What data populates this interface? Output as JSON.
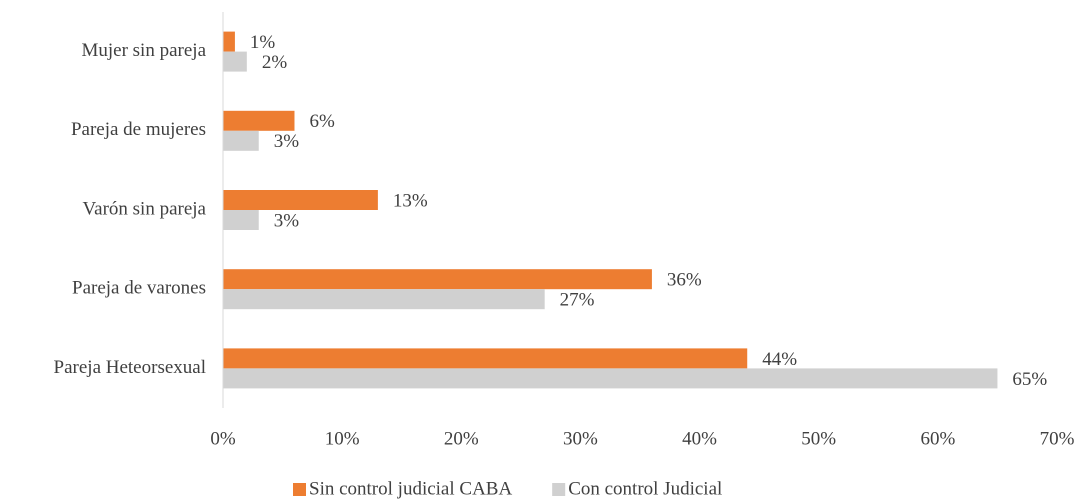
{
  "chart_data": {
    "type": "hbar",
    "categories": [
      "Mujer sin pareja",
      "Pareja de mujeres",
      "Varón sin pareja",
      "Pareja de varones",
      "Pareja Heteorsexual"
    ],
    "series": [
      {
        "name": "Sin control judicial CABA",
        "color": "#ed7d31",
        "values": [
          1,
          6,
          13,
          36,
          44
        ],
        "value_labels": [
          "1%",
          "6%",
          "13%",
          "36%",
          "44%"
        ]
      },
      {
        "name": "Con control Judicial",
        "color": "#d0d0d0",
        "values": [
          2,
          3,
          3,
          27,
          65
        ],
        "value_labels": [
          "2%",
          "3%",
          "3%",
          "27%",
          "65%"
        ]
      }
    ],
    "xlim": [
      0,
      70
    ],
    "xticks": [
      {
        "value": 0,
        "label": "0%"
      },
      {
        "value": 10,
        "label": "10%"
      },
      {
        "value": 20,
        "label": "20%"
      },
      {
        "value": 30,
        "label": "30%"
      },
      {
        "value": 40,
        "label": "40%"
      },
      {
        "value": 50,
        "label": "50%"
      },
      {
        "value": 60,
        "label": "60%"
      },
      {
        "value": 70,
        "label": "70%"
      }
    ],
    "grid": false,
    "legend": "bottom"
  }
}
